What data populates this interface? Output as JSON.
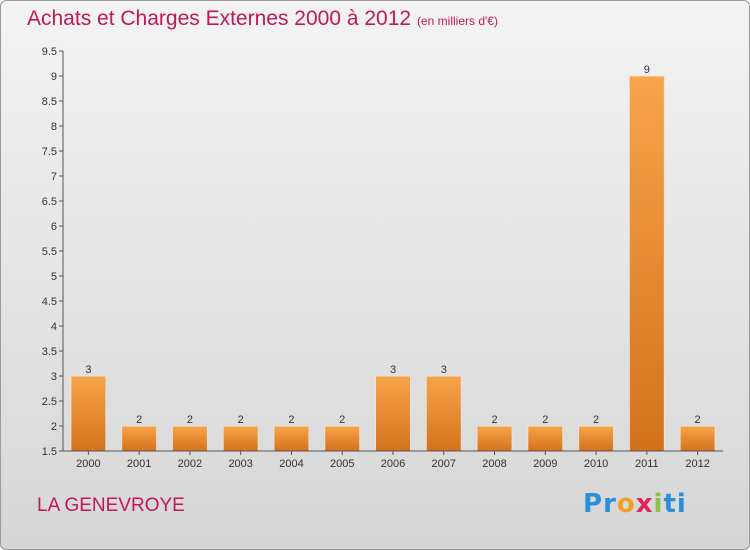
{
  "title": "Achats et Charges Externes 2000 à 2012",
  "subtitle": "(en milliers d'€)",
  "commune": "LA GENEVROYE",
  "logo": {
    "letters": [
      "P",
      "r",
      "o",
      "x",
      "i",
      "t",
      "i"
    ],
    "colors": [
      "#2a8fd6",
      "#2a8fd6",
      "#f0a020",
      "#e0245e",
      "#8bc34a",
      "#2a8fd6",
      "#2a8fd6"
    ]
  },
  "colors": {
    "bar_light": "#f7a44a",
    "bar_dark": "#d4721c",
    "title": "#c2185b"
  },
  "chart_data": {
    "type": "bar",
    "categories": [
      "2000",
      "2001",
      "2002",
      "2003",
      "2004",
      "2005",
      "2006",
      "2007",
      "2008",
      "2009",
      "2010",
      "2011",
      "2012"
    ],
    "values": [
      3,
      2,
      2,
      2,
      2,
      2,
      3,
      3,
      2,
      2,
      2,
      9,
      2
    ],
    "data_labels": [
      "3",
      "2",
      "2",
      "2",
      "2",
      "2",
      "3",
      "3",
      "2",
      "2",
      "2",
      "9",
      "2"
    ],
    "y_ticks": [
      "1.5",
      "2",
      "2.5",
      "3",
      "3.5",
      "4",
      "4.5",
      "5",
      "5.5",
      "6",
      "6.5",
      "7",
      "7.5",
      "8",
      "8.5",
      "9",
      "9.5"
    ],
    "ylim": [
      1.5,
      9.5
    ],
    "grid": false,
    "legend": "none"
  }
}
